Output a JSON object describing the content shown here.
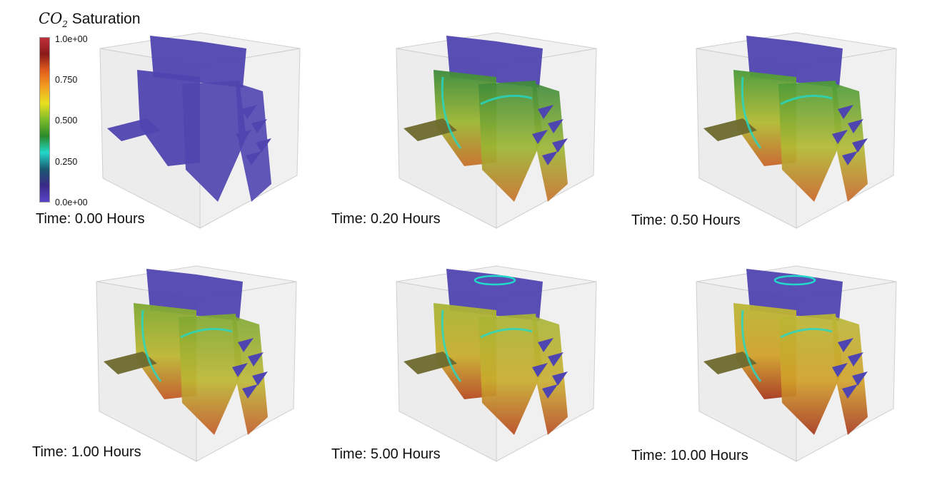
{
  "legend": {
    "title_chem": "CO",
    "title_sub": "2",
    "title_text": "Saturation",
    "ticks": [
      "1.0e+00",
      "0.750",
      "0.500",
      "0.250",
      "0.0e+00"
    ],
    "colormap": [
      "#c0303a",
      "#8a1a1a",
      "#e25c1c",
      "#f2a020",
      "#e8e020",
      "#7dbb2a",
      "#2a8a2a",
      "#22d8c8",
      "#1a5a70",
      "#3a2a88",
      "#5a44c8"
    ]
  },
  "panels": [
    {
      "time_label": "Time: 0.00 Hours",
      "stage": 0
    },
    {
      "time_label": "Time: 0.20 Hours",
      "stage": 1
    },
    {
      "time_label": "Time: 0.50 Hours",
      "stage": 2
    },
    {
      "time_label": "Time: 1.00 Hours",
      "stage": 3
    },
    {
      "time_label": "Time: 5.00 Hours",
      "stage": 4
    },
    {
      "time_label": "Time: 10.00 Hours",
      "stage": 5
    }
  ]
}
